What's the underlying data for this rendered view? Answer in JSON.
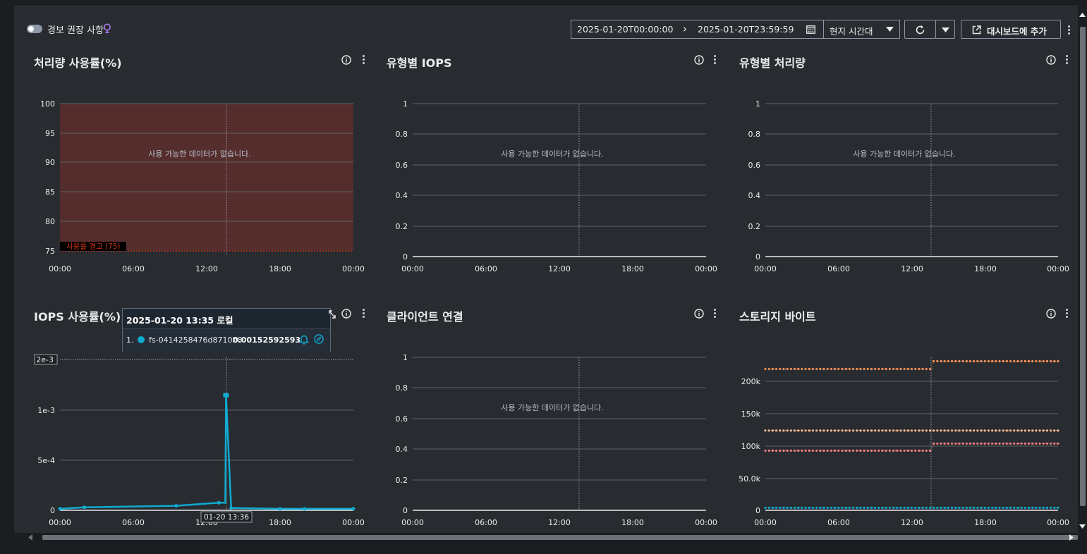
{
  "toolbar": {
    "alarm_toggle_label": "경보 권장 사항",
    "date_start": "2025-01-20T00:00:00",
    "date_end": "2025-01-20T23:59:59",
    "timezone": "현지 시간대",
    "add_to_dashboard": "대시보드에 추가"
  },
  "no_data": "사용 가능한 데이터가 없습니다.",
  "x_ticks": [
    "00:00",
    "06:00",
    "12:00",
    "18:00",
    "00:00"
  ],
  "panels": {
    "throughput_util": {
      "title": "처리량 사용률(%)",
      "y_ticks": [
        "100",
        "95",
        "90",
        "85",
        "80",
        "75"
      ],
      "threshold_label": "사용률 경고 (75)"
    },
    "iops_by_type": {
      "title": "유형별 IOPS",
      "y_ticks": [
        "1",
        "0.8",
        "0.6",
        "0.4",
        "0.2",
        "0"
      ]
    },
    "throughput_by_type": {
      "title": "유형별 처리량",
      "y_ticks": [
        "1",
        "0.8",
        "0.6",
        "0.4",
        "0.2",
        "0"
      ]
    },
    "iops_util": {
      "title": "IOPS 사용률(%)",
      "y_ticks": [
        "2e-3",
        "1e-3",
        "5e-4",
        "0"
      ],
      "crosshair_label": "01-20 13:36"
    },
    "client_connections": {
      "title": "클라이언트 연결",
      "y_ticks": [
        "1",
        "0.8",
        "0.6",
        "0.4",
        "0.2",
        "0"
      ]
    },
    "storage_bytes": {
      "title": "스토리지 바이트",
      "y_ticks": [
        "200k",
        "150k",
        "100k",
        "50.0k",
        "0"
      ]
    }
  },
  "tooltip": {
    "header": "2025-01-20 13:35 로컬",
    "index": "1.",
    "series_name": "fs-0414258476d8710b8",
    "value": "0.00152592593"
  },
  "colors": {
    "threshold": "#d13212",
    "iops_series": "#0fabd1",
    "storage_series_1": "#f89256",
    "storage_series_2": "#fcb88d",
    "storage_series_3": "#f47f7f",
    "storage_series_4": "#0fabd1"
  },
  "chart_data": [
    {
      "type": "line",
      "title": "IOPS 사용률(%)",
      "x": [
        "00:00",
        "02:00",
        "09:30",
        "13:00",
        "13:35",
        "14:00",
        "18:00",
        "20:00",
        "24:00"
      ],
      "series": [
        {
          "name": "fs-0414258476d8710b8",
          "values": [
            2e-05,
            4e-05,
            6e-05,
            0.0001,
            0.00152592593,
            3e-05,
            2e-05,
            2e-05,
            2e-05
          ]
        }
      ],
      "ylim": [
        0,
        0.002
      ]
    },
    {
      "type": "line",
      "title": "스토리지 바이트",
      "x": [
        "00:00",
        "13:00",
        "13:40",
        "24:00"
      ],
      "series": [
        {
          "values": [
            218000,
            218000,
            230000,
            230000
          ]
        },
        {
          "values": [
            123000,
            123000,
            123000,
            123000
          ]
        },
        {
          "values": [
            92000,
            92000,
            103000,
            103000
          ]
        },
        {
          "values": [
            4000,
            4000,
            4000,
            4000
          ]
        }
      ],
      "ylim": [
        0,
        236000
      ]
    }
  ]
}
